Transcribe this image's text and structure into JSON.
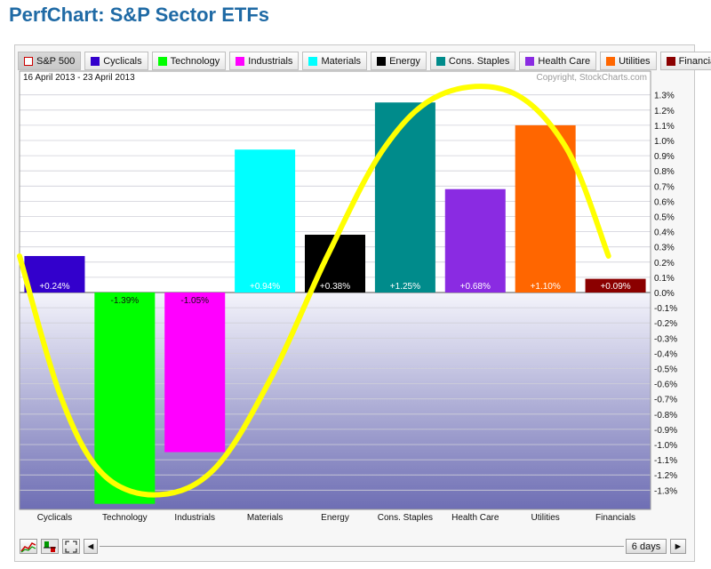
{
  "page": {
    "title": "PerfChart: S&P Sector ETFs"
  },
  "legend": [
    {
      "label": "S&P 500",
      "color": "#ffffff",
      "hollow": true
    },
    {
      "label": "Cyclicals",
      "color": "#3300cc"
    },
    {
      "label": "Technology",
      "color": "#00ff00"
    },
    {
      "label": "Industrials",
      "color": "#ff00ff"
    },
    {
      "label": "Materials",
      "color": "#00ffff"
    },
    {
      "label": "Energy",
      "color": "#000000"
    },
    {
      "label": "Cons. Staples",
      "color": "#008b8b"
    },
    {
      "label": "Health Care",
      "color": "#8a2be2"
    },
    {
      "label": "Utilities",
      "color": "#ff6600"
    },
    {
      "label": "Financials",
      "color": "#8b0000"
    }
  ],
  "controls": {
    "period_label": "6 days",
    "prev_symbol": "◄",
    "next_symbol": "►"
  },
  "chart_data": {
    "type": "bar",
    "date_range": "16 April 2013 - 23 April 2013",
    "copyright": "Copyright, StockCharts.com",
    "categories": [
      "Cyclicals",
      "Technology",
      "Industrials",
      "Materials",
      "Energy",
      "Cons. Staples",
      "Health Care",
      "Utilities",
      "Financials"
    ],
    "values": [
      0.24,
      -1.39,
      -1.05,
      0.94,
      0.38,
      1.25,
      0.68,
      1.1,
      0.09
    ],
    "value_labels": [
      "+0.24%",
      "-1.39%",
      "-1.05%",
      "+0.94%",
      "+0.38%",
      "+1.25%",
      "+0.68%",
      "+1.10%",
      "+0.09%"
    ],
    "colors": [
      "#3300cc",
      "#00ff00",
      "#ff00ff",
      "#00ffff",
      "#000000",
      "#008b8b",
      "#8a2be2",
      "#ff6600",
      "#8b0000"
    ],
    "ylim": [
      -1.4,
      1.35
    ],
    "yticks": [
      1.3,
      1.2,
      1.1,
      1.0,
      0.9,
      0.8,
      0.7,
      0.6,
      0.5,
      0.4,
      0.3,
      0.2,
      0.1,
      0.0,
      -0.1,
      -0.2,
      -0.3,
      -0.4,
      -0.5,
      -0.6,
      -0.7,
      -0.8,
      -0.9,
      -1.0,
      -1.1,
      -1.2,
      -1.3
    ],
    "ytick_labels": [
      "1.3%",
      "1.2%",
      "1.1%",
      "1.0%",
      "0.9%",
      "0.8%",
      "0.7%",
      "0.6%",
      "0.5%",
      "0.4%",
      "0.3%",
      "0.2%",
      "0.1%",
      "0.0%",
      "-0.1%",
      "-0.2%",
      "-0.3%",
      "-0.4%",
      "-0.5%",
      "-0.6%",
      "-0.7%",
      "-0.8%",
      "-0.9%",
      "-1.0%",
      "-1.1%",
      "-1.2%",
      "-1.3%"
    ],
    "grid": true,
    "annotation_curve": {
      "color": "#ffff00",
      "points": [
        [
          0,
          0.24
        ],
        [
          0.6,
          -0.7
        ],
        [
          1.2,
          -1.2
        ],
        [
          2.0,
          -1.33
        ],
        [
          2.8,
          -1.15
        ],
        [
          3.6,
          -0.55
        ],
        [
          4.4,
          0.25
        ],
        [
          5.2,
          0.95
        ],
        [
          6.0,
          1.3
        ],
        [
          7.0,
          1.32
        ],
        [
          7.8,
          0.95
        ],
        [
          8.4,
          0.24
        ]
      ]
    }
  }
}
